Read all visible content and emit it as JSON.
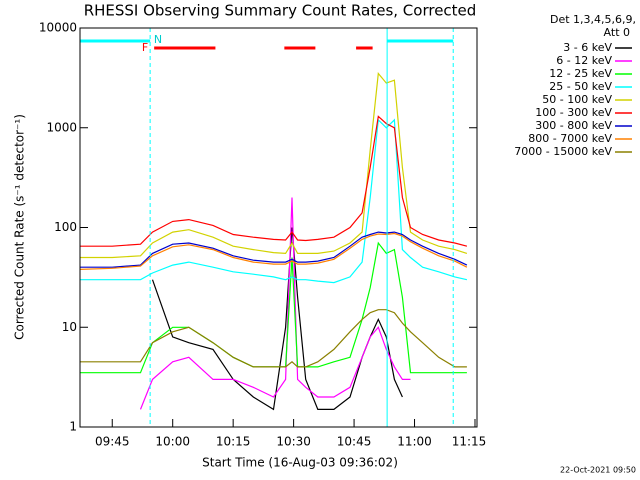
{
  "chart_data": {
    "type": "line",
    "title": "RHESSI Observing Summary Count Rates, Corrected",
    "x_label": "Start Time (16-Aug-03 09:36:02)",
    "y_label": "Corrected Count Rate (s⁻¹ detector⁻¹)",
    "legend_title": [
      "Det 1,3,4,5,6,9,",
      "Att 0"
    ],
    "footer": "22-Oct-2021 09:50",
    "log_y": true,
    "xlim": [
      37,
      135.5
    ],
    "ylim": [
      1,
      10000
    ],
    "xticks": [
      {
        "value": 45,
        "label": "09:45"
      },
      {
        "value": 60,
        "label": "10:00"
      },
      {
        "value": 75,
        "label": "10:15"
      },
      {
        "value": 90,
        "label": "10:30"
      },
      {
        "value": 105,
        "label": "10:45"
      },
      {
        "value": 120,
        "label": "11:00"
      },
      {
        "value": 135,
        "label": "11:15"
      }
    ],
    "yticks": [
      1,
      10,
      100,
      1000,
      10000
    ],
    "x": [
      37,
      45,
      52,
      55,
      60,
      64,
      70,
      75,
      80,
      85,
      88,
      89.6,
      91,
      93,
      96,
      100,
      104,
      107,
      109,
      111,
      113,
      115,
      117,
      119,
      122,
      126,
      130,
      133
    ],
    "series": [
      {
        "name": "3 - 6 keV",
        "color": "#000000",
        "values": [
          null,
          null,
          null,
          30,
          8,
          7,
          6,
          3,
          2,
          1.5,
          10,
          100,
          20,
          3,
          1.5,
          1.5,
          2,
          5,
          8,
          12,
          8,
          3,
          2,
          null,
          null,
          null,
          null,
          null
        ]
      },
      {
        "name": "6 - 12 keV",
        "color": "#ff00ff",
        "values": [
          null,
          null,
          1.5,
          3,
          4.5,
          5,
          3,
          3,
          2.5,
          2,
          3,
          200,
          3,
          2.5,
          2,
          2,
          2.5,
          5,
          8,
          10,
          6,
          4,
          3,
          3,
          null,
          null,
          null,
          null
        ]
      },
      {
        "name": "12 - 25 keV",
        "color": "#00ff00",
        "values": [
          3.5,
          3.5,
          3.5,
          7,
          10,
          10,
          7,
          5,
          4,
          4,
          4,
          50,
          4,
          4,
          4,
          4.5,
          5,
          12,
          25,
          70,
          55,
          60,
          20,
          3.5,
          3.5,
          3.5,
          3.5,
          3.5
        ]
      },
      {
        "name": "25 - 50 keV",
        "color": "#00ffff",
        "values": [
          30,
          30,
          30,
          35,
          42,
          45,
          40,
          36,
          34,
          32,
          30,
          32,
          30,
          30,
          29,
          28,
          32,
          45,
          200,
          1200,
          1000,
          1200,
          60,
          50,
          40,
          36,
          32,
          30
        ]
      },
      {
        "name": "50 - 100 keV",
        "color": "#d2d200",
        "values": [
          50,
          50,
          52,
          70,
          90,
          95,
          80,
          65,
          60,
          56,
          55,
          70,
          55,
          55,
          55,
          58,
          70,
          90,
          600,
          3500,
          2800,
          3000,
          400,
          90,
          75,
          65,
          60,
          55
        ]
      },
      {
        "name": "100 - 300 keV",
        "color": "#ff0000",
        "values": [
          65,
          65,
          68,
          90,
          115,
          120,
          105,
          85,
          80,
          76,
          75,
          90,
          75,
          74,
          76,
          80,
          100,
          140,
          400,
          1300,
          1100,
          1000,
          200,
          100,
          85,
          75,
          70,
          65
        ]
      },
      {
        "name": "300 - 800 keV",
        "color": "#0000cc",
        "values": [
          40,
          40,
          42,
          55,
          68,
          70,
          62,
          52,
          47,
          45,
          45,
          48,
          45,
          45,
          46,
          50,
          65,
          80,
          85,
          90,
          88,
          90,
          85,
          75,
          65,
          55,
          48,
          42
        ]
      },
      {
        "name": "800 - 7000 keV",
        "color": "#ff8000",
        "values": [
          38,
          39,
          41,
          52,
          64,
          67,
          60,
          50,
          45,
          43,
          43,
          46,
          43,
          43,
          44,
          48,
          62,
          76,
          82,
          86,
          85,
          87,
          82,
          72,
          62,
          52,
          46,
          40
        ]
      },
      {
        "name": "7000 - 15000 keV",
        "color": "#8b8000",
        "values": [
          4.5,
          4.5,
          4.5,
          7,
          9,
          10,
          7,
          5,
          4,
          4,
          4,
          4.5,
          4,
          4,
          4.5,
          6,
          9,
          12,
          14,
          15,
          15,
          14,
          11,
          9,
          7,
          5,
          4,
          4
        ]
      }
    ],
    "markers": {
      "labels": [
        "F",
        "N"
      ],
      "red_bars": [
        [
          55.4,
          70.6
        ],
        [
          87.7,
          95.4
        ],
        [
          105.5,
          109.6
        ]
      ],
      "cyan_bars": [
        [
          37,
          54.4
        ],
        [
          113.2,
          129.6
        ]
      ],
      "dashed_lines": [
        54.4,
        129.6
      ],
      "solid_lines": [
        37,
        113.2
      ]
    }
  }
}
